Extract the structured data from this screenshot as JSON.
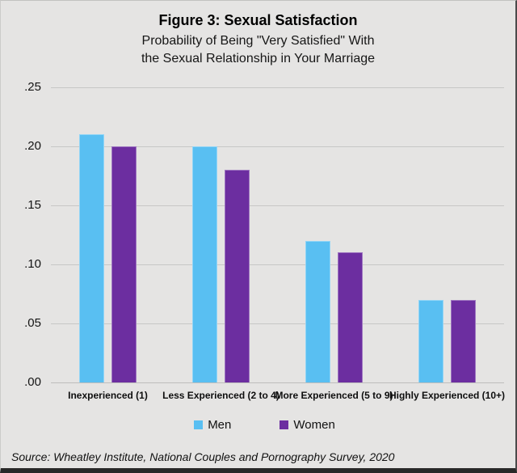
{
  "header": {
    "title": "Figure 3: Sexual Satisfaction",
    "subtitle_line1": "Probability of Being \"Very Satisfied\" With",
    "subtitle_line2": "the Sexual Relationship in Your Marriage"
  },
  "chart_data": {
    "type": "bar",
    "title": "Figure 3: Sexual Satisfaction",
    "subtitle": "Probability of Being \"Very Satisfied\" With the Sexual Relationship in Your Marriage",
    "categories": [
      "Inexperienced (1)",
      "Less Experienced (2 to 4)",
      "More Experienced (5 to 9)",
      "Highly Experienced (10+)"
    ],
    "series": [
      {
        "name": "Men",
        "color": "#59BFF2",
        "values": [
          0.21,
          0.2,
          0.12,
          0.07
        ]
      },
      {
        "name": "Women",
        "color": "#6C2EA0",
        "values": [
          0.2,
          0.18,
          0.11,
          0.07
        ]
      }
    ],
    "xlabel": "",
    "ylabel": "",
    "ylim": [
      0,
      0.25
    ],
    "ytick_step": 0.05,
    "ytick_labels": [
      ".00",
      ".05",
      ".10",
      ".15",
      ".20",
      ".25"
    ],
    "grid": true,
    "legend_position": "bottom"
  },
  "footer": {
    "source": "Source: Wheatley Institute, National Couples and Pornography Survey, 2020"
  },
  "colors": {
    "background": "#E5E4E3",
    "men": "#59BFF2",
    "women": "#6C2EA0",
    "gridline": "#C7C7C6"
  }
}
